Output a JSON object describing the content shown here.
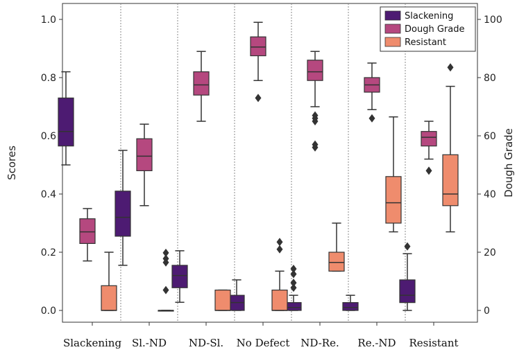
{
  "chart_data": {
    "type": "box",
    "categories": [
      "Slackening",
      "Sl.-ND",
      "ND-Sl.",
      "No Defect",
      "ND-Re.",
      "Re.-ND",
      "Resistant"
    ],
    "ylabel_left": "Scores",
    "ylabel_right": "Dough Grade",
    "ylim_left": [
      0,
      1.0
    ],
    "ylim_right": [
      0,
      100
    ],
    "yticks_left": [
      "0.0",
      "0.2",
      "0.4",
      "0.6",
      "0.8",
      "1.0"
    ],
    "yticks_right": [
      "0",
      "20",
      "40",
      "60",
      "80",
      "100"
    ],
    "legend_position": "top-right",
    "category_separators": "dotted",
    "series": [
      {
        "name": "Slackening",
        "color": "#4d1b72",
        "boxes": [
          {
            "whisker_low": 0.5,
            "q1": 0.565,
            "median": 0.615,
            "q3": 0.73,
            "whisker_high": 0.82,
            "outliers": []
          },
          {
            "whisker_low": 0.155,
            "q1": 0.255,
            "median": 0.32,
            "q3": 0.41,
            "whisker_high": 0.55,
            "outliers": []
          },
          {
            "whisker_low": 0.028,
            "q1": 0.078,
            "median": 0.12,
            "q3": 0.155,
            "whisker_high": 0.205,
            "outliers": []
          },
          {
            "whisker_low": 0.0,
            "q1": 0.0,
            "median": 0.027,
            "q3": 0.052,
            "whisker_high": 0.105,
            "outliers": []
          },
          {
            "whisker_low": 0.0,
            "q1": 0.0,
            "median": 0.01,
            "q3": 0.027,
            "whisker_high": 0.052,
            "outliers": [
              0.078,
              0.095,
              0.125,
              0.143
            ]
          },
          {
            "whisker_low": 0.0,
            "q1": 0.0,
            "median": 0.01,
            "q3": 0.027,
            "whisker_high": 0.052,
            "outliers": []
          },
          {
            "whisker_low": 0.0,
            "q1": 0.027,
            "median": 0.052,
            "q3": 0.105,
            "whisker_high": 0.195,
            "outliers": [
              0.22
            ]
          }
        ]
      },
      {
        "name": "Dough Grade",
        "color": "#b5487f",
        "boxes": [
          {
            "whisker_low": 17,
            "q1": 23,
            "median": 27,
            "q3": 31.5,
            "whisker_high": 35,
            "outliers": []
          },
          {
            "whisker_low": 36,
            "q1": 48,
            "median": 53,
            "q3": 59,
            "whisker_high": 64,
            "outliers": []
          },
          {
            "whisker_low": 65,
            "q1": 74,
            "median": 77.5,
            "q3": 82,
            "whisker_high": 89,
            "outliers": []
          },
          {
            "whisker_low": 79,
            "q1": 87.5,
            "median": 90.5,
            "q3": 94,
            "whisker_high": 99,
            "outliers": [
              73
            ]
          },
          {
            "whisker_low": 70,
            "q1": 79,
            "median": 82,
            "q3": 86,
            "whisker_high": 89,
            "outliers": [
              57,
              56,
              65,
              66,
              67
            ]
          },
          {
            "whisker_low": 69,
            "q1": 75,
            "median": 77.5,
            "q3": 80,
            "whisker_high": 85,
            "outliers": [
              66
            ]
          },
          {
            "whisker_low": 52,
            "q1": 56.5,
            "median": 59.5,
            "q3": 61.5,
            "whisker_high": 65,
            "outliers": [
              48
            ]
          }
        ]
      },
      {
        "name": "Resistant",
        "color": "#ef8c6d",
        "boxes": [
          {
            "whisker_low": 0.0,
            "q1": 0.0,
            "median": 0.0,
            "q3": 0.085,
            "whisker_high": 0.2,
            "outliers": []
          },
          {
            "whisker_low": 0.0,
            "q1": 0.0,
            "median": 0.0,
            "q3": 0.0,
            "whisker_high": 0.0,
            "outliers": [
              0.07,
              0.165,
              0.178,
              0.198
            ]
          },
          {
            "whisker_low": 0.0,
            "q1": 0.0,
            "median": 0.0,
            "q3": 0.07,
            "whisker_high": 0.07,
            "outliers": []
          },
          {
            "whisker_low": 0.0,
            "q1": 0.0,
            "median": 0.0,
            "q3": 0.07,
            "whisker_high": 0.135,
            "outliers": [
              0.21,
              0.235
            ]
          },
          {
            "whisker_low": 0.135,
            "q1": 0.135,
            "median": 0.165,
            "q3": 0.2,
            "whisker_high": 0.3,
            "outliers": []
          },
          {
            "whisker_low": 0.27,
            "q1": 0.3,
            "median": 0.37,
            "q3": 0.46,
            "whisker_high": 0.665,
            "outliers": []
          },
          {
            "whisker_low": 0.27,
            "q1": 0.36,
            "median": 0.4,
            "q3": 0.535,
            "whisker_high": 0.77,
            "outliers": [
              0.835
            ]
          }
        ]
      }
    ],
    "series_axis": [
      "left",
      "right",
      "left"
    ]
  }
}
